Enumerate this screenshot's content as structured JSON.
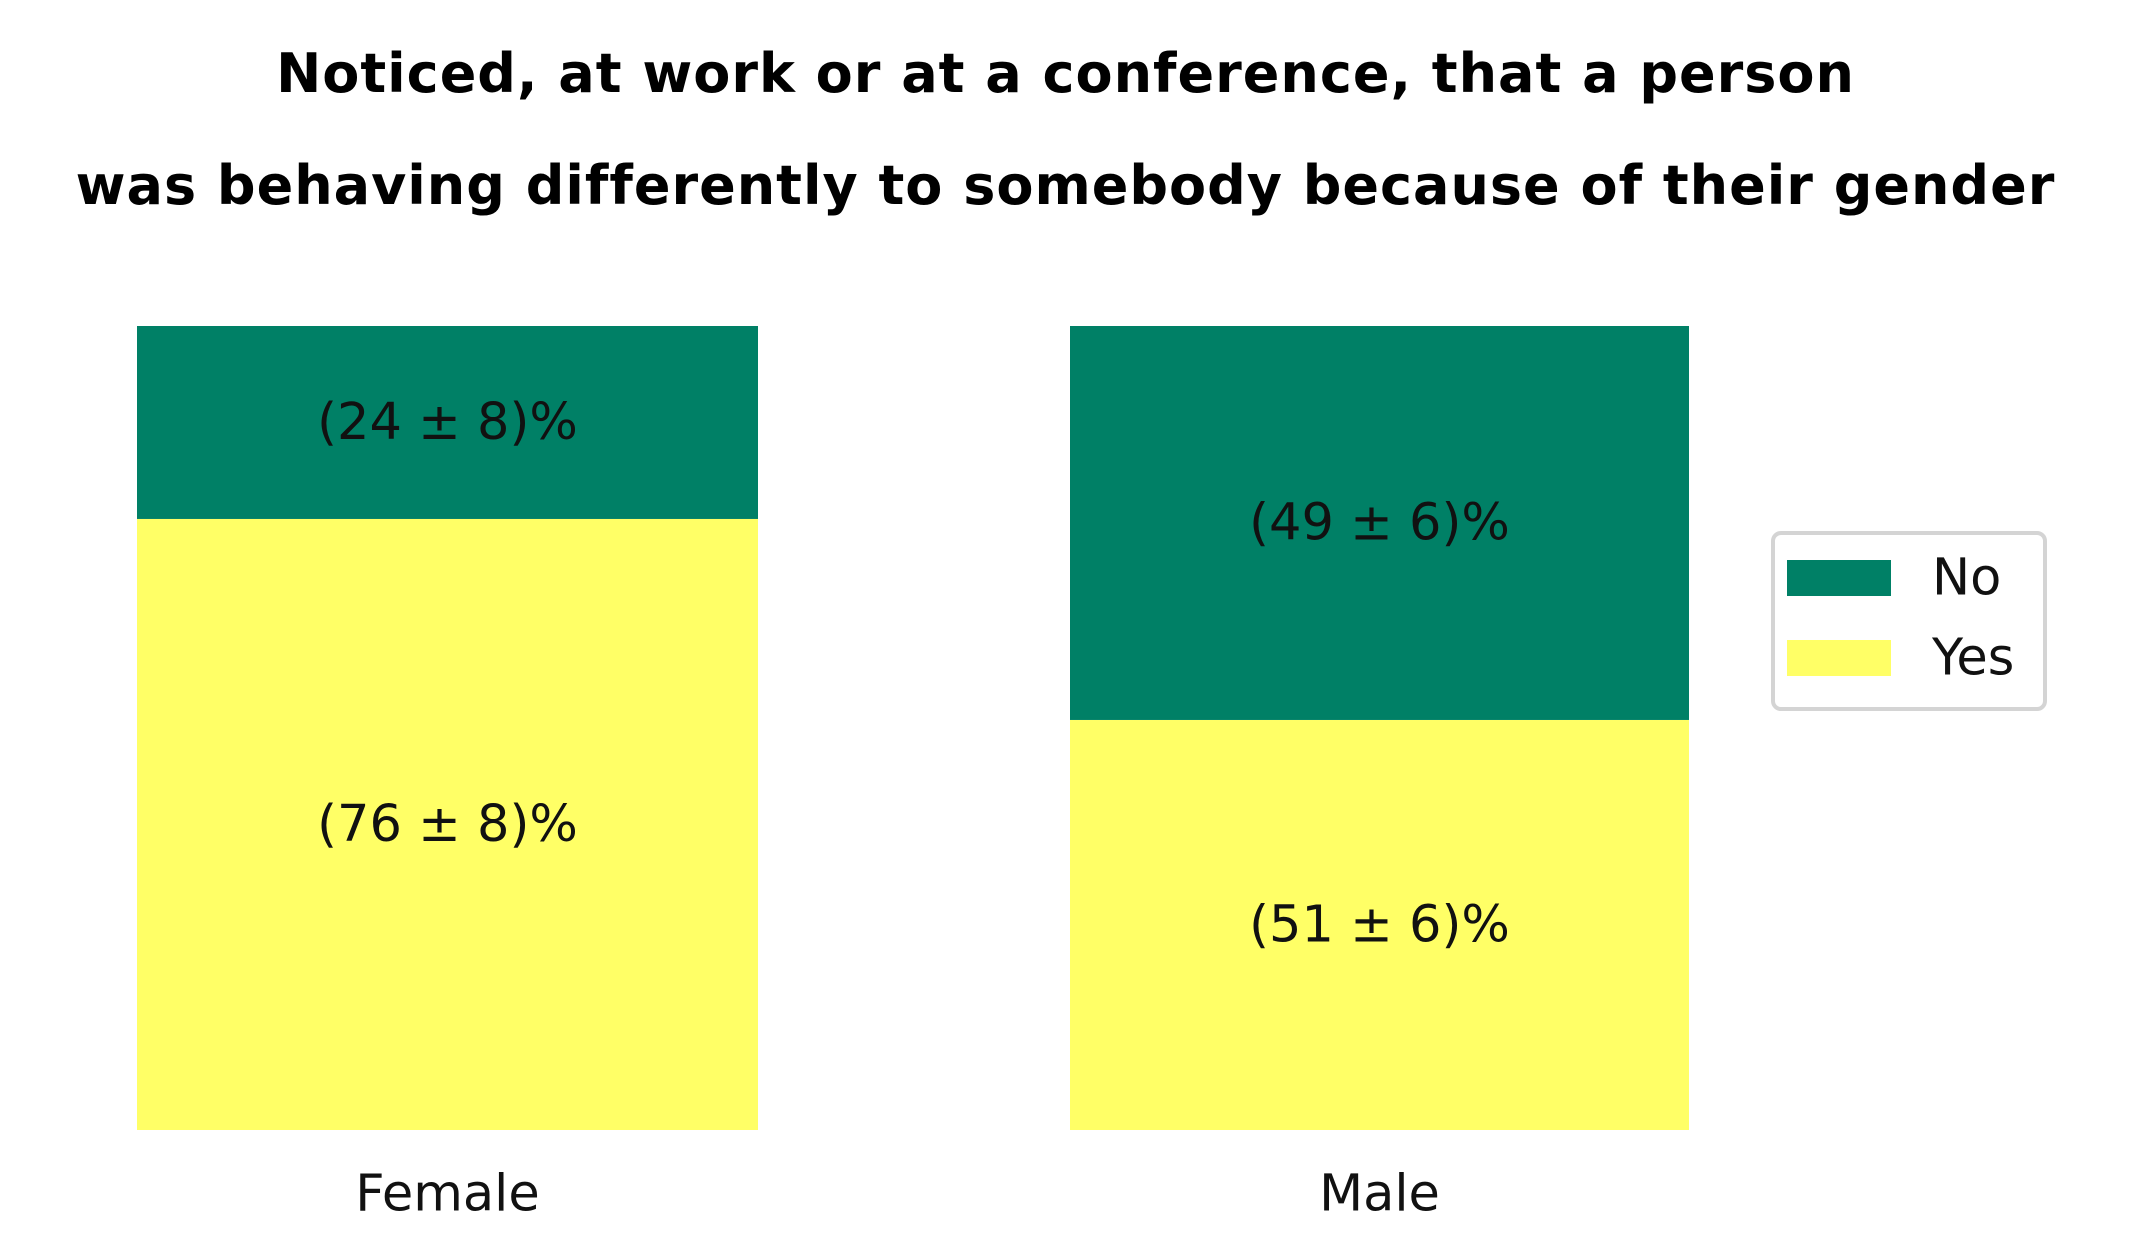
{
  "chart_data": {
    "type": "bar",
    "stacked": true,
    "normalized": true,
    "title_lines": [
      "Noticed, at work or at a conference, that a person",
      "was behaving differently to somebody because of their gender"
    ],
    "categories": [
      "Female",
      "Male"
    ],
    "series": [
      {
        "name": "Yes",
        "color": "#ffff66",
        "values": [
          76,
          51
        ],
        "labels": [
          "(76 ± 8)%",
          "(51 ± 6)%"
        ]
      },
      {
        "name": "No",
        "color": "#008066",
        "values": [
          24,
          49
        ],
        "labels": [
          "(24 ± 8)%",
          "(49 ± 6)%"
        ]
      }
    ],
    "legend_order": [
      "No",
      "Yes"
    ],
    "legend_position": "right",
    "ylim": [
      0,
      100
    ],
    "grid": false,
    "axes_visible": false
  }
}
